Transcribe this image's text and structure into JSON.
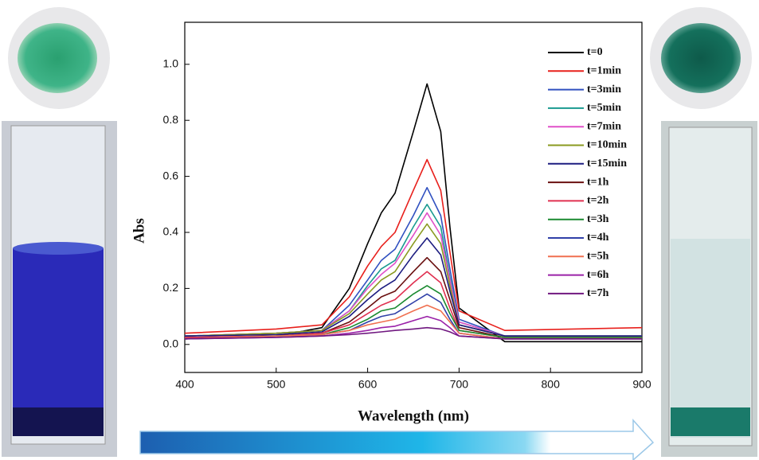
{
  "chart_data": {
    "type": "line",
    "x_label": "Wavelength (nm)",
    "y_label": "Abs",
    "xlim": [
      400,
      900
    ],
    "ylim": [
      -0.1,
      1.15
    ],
    "xticks": [
      400,
      500,
      600,
      700,
      800,
      900
    ],
    "yticks": [
      {
        "value": 0,
        "label": "0.0"
      },
      0.2,
      0.4,
      0.6,
      0.8,
      {
        "value": 1,
        "label": "1.0"
      }
    ],
    "x": [
      400,
      500,
      550,
      580,
      600,
      615,
      630,
      650,
      665,
      680,
      690,
      700,
      750,
      900
    ],
    "series": [
      {
        "name": "t=0",
        "color": "#000000",
        "values": [
          0.02,
          0.03,
          0.06,
          0.2,
          0.36,
          0.47,
          0.54,
          0.76,
          0.93,
          0.76,
          0.42,
          0.13,
          0.01,
          0.01
        ]
      },
      {
        "name": "t=1min",
        "color": "#e8201c",
        "values": [
          0.04,
          0.055,
          0.07,
          0.17,
          0.28,
          0.35,
          0.4,
          0.55,
          0.66,
          0.55,
          0.33,
          0.12,
          0.05,
          0.06
        ]
      },
      {
        "name": "t=3min",
        "color": "#3050c0",
        "values": [
          0.03,
          0.04,
          0.05,
          0.14,
          0.23,
          0.3,
          0.34,
          0.46,
          0.56,
          0.46,
          0.27,
          0.09,
          0.03,
          0.03
        ]
      },
      {
        "name": "t=5min",
        "color": "#1a9a90",
        "values": [
          0.03,
          0.04,
          0.05,
          0.12,
          0.21,
          0.27,
          0.3,
          0.42,
          0.5,
          0.42,
          0.24,
          0.08,
          0.03,
          0.03
        ]
      },
      {
        "name": "t=7min",
        "color": "#e050c8",
        "values": [
          0.03,
          0.04,
          0.05,
          0.12,
          0.2,
          0.25,
          0.29,
          0.39,
          0.47,
          0.39,
          0.23,
          0.08,
          0.03,
          0.03
        ]
      },
      {
        "name": "t=10min",
        "color": "#8a9a20",
        "values": [
          0.03,
          0.04,
          0.05,
          0.11,
          0.18,
          0.23,
          0.26,
          0.36,
          0.43,
          0.36,
          0.21,
          0.07,
          0.03,
          0.03
        ]
      },
      {
        "name": "t=15min",
        "color": "#1c1c80",
        "values": [
          0.03,
          0.035,
          0.045,
          0.1,
          0.16,
          0.2,
          0.23,
          0.32,
          0.38,
          0.32,
          0.19,
          0.07,
          0.03,
          0.03
        ]
      },
      {
        "name": "t=1h",
        "color": "#6a1010",
        "values": [
          0.025,
          0.03,
          0.04,
          0.08,
          0.13,
          0.17,
          0.19,
          0.26,
          0.31,
          0.26,
          0.16,
          0.06,
          0.025,
          0.025
        ]
      },
      {
        "name": "t=2h",
        "color": "#e03050",
        "values": [
          0.025,
          0.03,
          0.04,
          0.07,
          0.11,
          0.14,
          0.16,
          0.22,
          0.26,
          0.22,
          0.13,
          0.05,
          0.025,
          0.025
        ]
      },
      {
        "name": "t=3h",
        "color": "#1a8a30",
        "values": [
          0.02,
          0.03,
          0.035,
          0.06,
          0.09,
          0.12,
          0.13,
          0.18,
          0.21,
          0.18,
          0.11,
          0.05,
          0.025,
          0.025
        ]
      },
      {
        "name": "t=4h",
        "color": "#3040a8",
        "values": [
          0.02,
          0.03,
          0.035,
          0.05,
          0.08,
          0.1,
          0.11,
          0.15,
          0.18,
          0.15,
          0.09,
          0.04,
          0.02,
          0.02
        ]
      },
      {
        "name": "t=5h",
        "color": "#f07050",
        "values": [
          0.02,
          0.03,
          0.035,
          0.05,
          0.07,
          0.08,
          0.09,
          0.12,
          0.14,
          0.12,
          0.08,
          0.04,
          0.02,
          0.02
        ]
      },
      {
        "name": "t=6h",
        "color": "#9a20a8",
        "values": [
          0.02,
          0.025,
          0.03,
          0.04,
          0.05,
          0.06,
          0.065,
          0.085,
          0.1,
          0.085,
          0.06,
          0.03,
          0.02,
          0.02
        ]
      },
      {
        "name": "t=7h",
        "color": "#701880",
        "values": [
          0.02,
          0.025,
          0.03,
          0.035,
          0.04,
          0.045,
          0.05,
          0.055,
          0.06,
          0.055,
          0.045,
          0.03,
          0.02,
          0.02
        ]
      }
    ]
  }
}
